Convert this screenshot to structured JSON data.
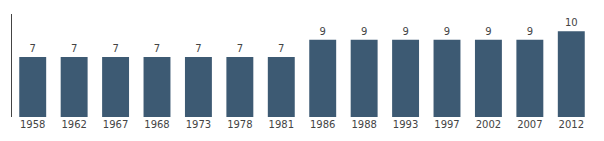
{
  "chart_data": {
    "type": "bar",
    "categories": [
      "1958",
      "1962",
      "1967",
      "1968",
      "1973",
      "1978",
      "1981",
      "1986",
      "1988",
      "1993",
      "1997",
      "2002",
      "2007",
      "2012"
    ],
    "values": [
      7,
      7,
      7,
      7,
      7,
      7,
      7,
      9,
      9,
      9,
      9,
      9,
      9,
      10
    ],
    "color": "#3d5a73",
    "ylim": [
      0,
      12
    ],
    "grid": false,
    "data_labels": true,
    "tick_labels": "x"
  }
}
